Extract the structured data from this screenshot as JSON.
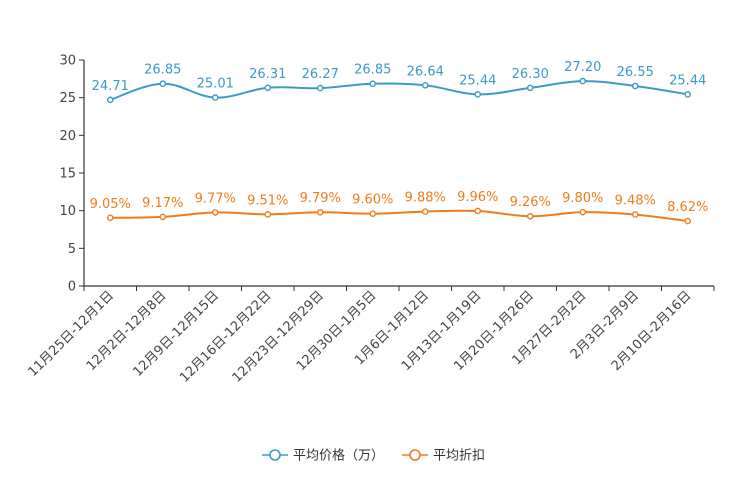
{
  "chart_data": {
    "type": "line",
    "title": "",
    "xlabel": "",
    "ylabel": "",
    "ylim": [
      0,
      30
    ],
    "yticks": [
      "0",
      "5",
      "10",
      "15",
      "20",
      "25",
      "30"
    ],
    "categories": [
      "11月25日-12月1日",
      "12月2日-12月8日",
      "12月9日-12月15日",
      "12月16日-12月22日",
      "12月23日-12月29日",
      "12月30日-1月5日",
      "1月6日-1月12日",
      "1月13日-1月19日",
      "1月20日-1月26日",
      "1月27日-2月2日",
      "2月3日-2月9日",
      "2月10日-2月16日"
    ],
    "series": [
      {
        "name": "平均价格（万）",
        "color": "#3a9bc8",
        "values": [
          24.71,
          26.85,
          25.01,
          26.31,
          26.27,
          26.85,
          26.64,
          25.44,
          26.3,
          27.2,
          26.55,
          25.44
        ],
        "labels": [
          "24.71",
          "26.85",
          "25.01",
          "26.31",
          "26.27",
          "26.85",
          "26.64",
          "25.44",
          "26.30",
          "27.20",
          "26.55",
          "25.44"
        ]
      },
      {
        "name": "平均折扣",
        "color": "#f07d1c",
        "values": [
          9.05,
          9.17,
          9.77,
          9.51,
          9.79,
          9.6,
          9.88,
          9.96,
          9.26,
          9.8,
          9.48,
          8.62
        ],
        "labels": [
          "9.05%",
          "9.17%",
          "9.77%",
          "9.51%",
          "9.79%",
          "9.60%",
          "9.88%",
          "9.96%",
          "9.26%",
          "9.80%",
          "9.48%",
          "8.62%"
        ]
      }
    ],
    "legend": {
      "position": "bottom"
    }
  }
}
